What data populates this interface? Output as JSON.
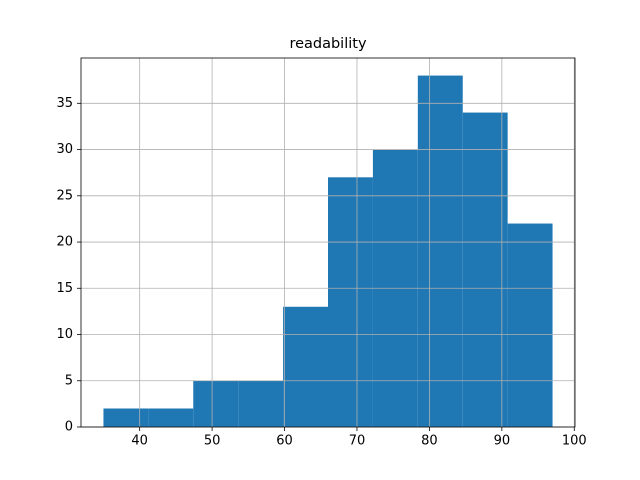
{
  "chart_data": {
    "type": "histogram",
    "title": "readability",
    "bins": [
      35,
      41.2,
      47.4,
      53.6,
      59.8,
      66,
      72.2,
      78.4,
      84.6,
      90.8,
      97
    ],
    "values": [
      2,
      2,
      5,
      5,
      13,
      27,
      30,
      38,
      34,
      22
    ],
    "color": "#1f77b4",
    "xlim": [
      31.9,
      100.1
    ],
    "xticks": [
      40,
      50,
      60,
      70,
      80,
      90,
      100
    ],
    "ylim": [
      0,
      39.9
    ],
    "yticks": [
      0,
      5,
      10,
      15,
      20,
      25,
      30,
      35
    ],
    "grid": true
  }
}
